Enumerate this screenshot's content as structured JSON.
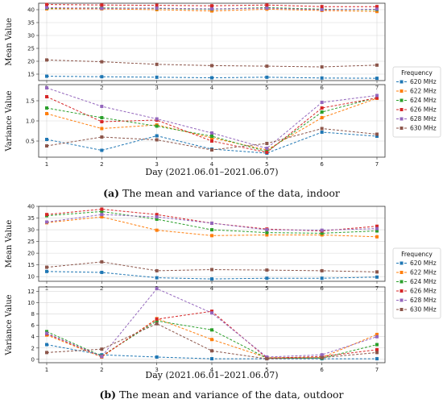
{
  "colors": [
    "#1f77b4",
    "#ff7f0e",
    "#2ca02c",
    "#d62728",
    "#9467bd",
    "#8c564b"
  ],
  "chart_data": [
    {
      "id": "a",
      "type": "line",
      "x_ticks": [
        "1",
        "2",
        "3",
        "4",
        "5",
        "6",
        "7"
      ],
      "xlabel": "Day (2021.06.01–2021.06.07)",
      "caption_letter": "(a)",
      "caption_text": " The mean and variance of the data, indoor",
      "legend_title": "Frequency",
      "legend_placement": "right, between panels",
      "panels": [
        {
          "ylabel": "Mean Value",
          "ylim": [
            12.5,
            42.5
          ],
          "yticks": [
            15,
            20,
            25,
            30,
            35,
            40
          ],
          "grid": true,
          "series": [
            {
              "name": "620 MHz",
              "values": [
                14.2,
                14.0,
                13.8,
                13.6,
                13.8,
                13.5,
                13.4
              ]
            },
            {
              "name": "622 MHz",
              "values": [
                40.3,
                40.3,
                40.0,
                39.5,
                40.2,
                39.7,
                39.3
              ]
            },
            {
              "name": "624 MHz",
              "values": [
                40.6,
                40.7,
                40.5,
                40.2,
                40.8,
                40.2,
                40.0
              ]
            },
            {
              "name": "626 MHz",
              "values": [
                42.0,
                41.8,
                41.7,
                41.5,
                41.8,
                41.2,
                41.2
              ]
            },
            {
              "name": "628 MHz",
              "values": [
                40.8,
                40.5,
                40.6,
                40.3,
                40.6,
                40.0,
                40.2
              ]
            },
            {
              "name": "630 MHz",
              "values": [
                20.5,
                19.8,
                18.8,
                18.3,
                18.1,
                17.8,
                18.5
              ]
            }
          ]
        },
        {
          "ylabel": "Variance Value",
          "ylim": [
            0.1,
            1.9
          ],
          "yticks": [
            0.5,
            1.0,
            1.5
          ],
          "ytick_format": 1,
          "grid": true,
          "series": [
            {
              "name": "620 MHz",
              "values": [
                0.54,
                0.27,
                0.63,
                0.3,
                0.2,
                0.72,
                0.62
              ]
            },
            {
              "name": "622 MHz",
              "values": [
                1.18,
                0.81,
                0.9,
                0.58,
                0.28,
                1.08,
                1.56
              ]
            },
            {
              "name": "624 MHz",
              "values": [
                1.32,
                1.08,
                0.87,
                0.62,
                0.24,
                1.22,
                1.58
              ]
            },
            {
              "name": "626 MHz",
              "values": [
                1.6,
                0.98,
                1.02,
                0.5,
                0.22,
                1.32,
                1.57
              ]
            },
            {
              "name": "628 MHz",
              "values": [
                1.82,
                1.36,
                1.05,
                0.7,
                0.32,
                1.46,
                1.63
              ]
            },
            {
              "name": "630 MHz",
              "values": [
                0.38,
                0.6,
                0.53,
                0.28,
                0.44,
                0.81,
                0.67
              ]
            }
          ]
        }
      ]
    },
    {
      "id": "b",
      "type": "line",
      "x_ticks": [
        "1",
        "2",
        "3",
        "4",
        "5",
        "6",
        "7"
      ],
      "xlabel": "Day (2021.06.01–2021.06.07)",
      "caption_letter": "(b)",
      "caption_text": " The mean and variance of the data, outdoor",
      "legend_title": "Frequency",
      "legend_placement": "right, between panels",
      "panels": [
        {
          "ylabel": "Mean Value",
          "ylim": [
            8,
            40
          ],
          "yticks": [
            10,
            15,
            20,
            25,
            30,
            35,
            40
          ],
          "grid": true,
          "series": [
            {
              "name": "620 MHz",
              "values": [
                12.2,
                11.8,
                9.5,
                9.0,
                9.3,
                9.3,
                9.8
              ]
            },
            {
              "name": "622 MHz",
              "values": [
                33.0,
                35.5,
                29.8,
                27.5,
                27.8,
                27.8,
                27.0
              ]
            },
            {
              "name": "624 MHz",
              "values": [
                36.0,
                37.8,
                34.5,
                30.0,
                28.8,
                28.5,
                29.5
              ]
            },
            {
              "name": "626 MHz",
              "values": [
                36.5,
                38.8,
                36.5,
                32.8,
                30.3,
                29.5,
                31.5
              ]
            },
            {
              "name": "628 MHz",
              "values": [
                33.3,
                36.5,
                35.5,
                32.8,
                30.0,
                29.8,
                30.5
              ]
            },
            {
              "name": "630 MHz",
              "values": [
                14.0,
                16.3,
                12.5,
                13.0,
                12.8,
                12.5,
                12.0
              ]
            }
          ]
        },
        {
          "ylabel": "Variance Value",
          "ylim": [
            -0.6,
            12.8
          ],
          "yticks": [
            0,
            2,
            4,
            6,
            8,
            10,
            12
          ],
          "ytick_format": 0,
          "grid": true,
          "series": [
            {
              "name": "620 MHz",
              "values": [
                2.6,
                0.8,
                0.4,
                0.1,
                0.1,
                0.1,
                0.1
              ]
            },
            {
              "name": "622 MHz",
              "values": [
                4.3,
                0.4,
                7.2,
                3.5,
                0.3,
                0.3,
                4.4
              ]
            },
            {
              "name": "624 MHz",
              "values": [
                4.9,
                0.6,
                6.8,
                5.2,
                0.2,
                0.2,
                2.6
              ]
            },
            {
              "name": "626 MHz",
              "values": [
                4.5,
                0.5,
                7.1,
                8.5,
                0.2,
                0.5,
                1.7
              ]
            },
            {
              "name": "628 MHz",
              "values": [
                4.6,
                0.5,
                12.5,
                8.2,
                0.4,
                0.8,
                4.0
              ]
            },
            {
              "name": "630 MHz",
              "values": [
                1.2,
                1.8,
                6.3,
                1.5,
                0.1,
                0.3,
                1.2
              ]
            }
          ]
        }
      ]
    }
  ]
}
